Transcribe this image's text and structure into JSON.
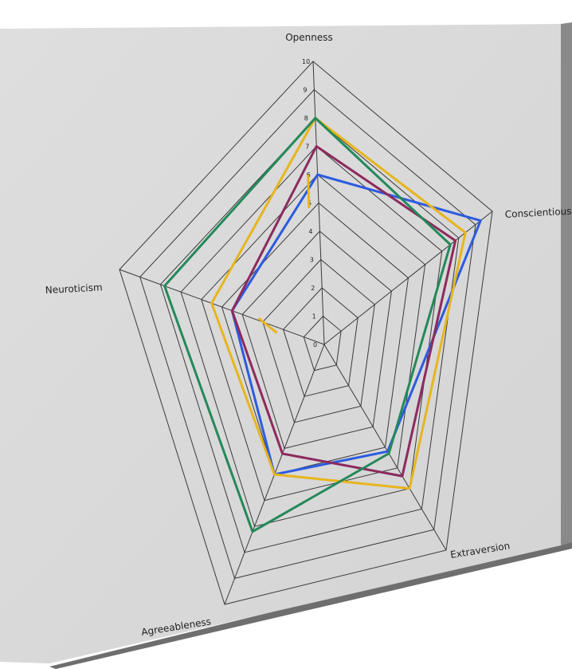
{
  "chart_data": {
    "type": "radar",
    "axes": [
      "Openness",
      "Conscientiousness",
      "Extraversion",
      "Agreeableness",
      "Neuroticism"
    ],
    "axis_label_display": [
      "Openness",
      "Conscientiousnes",
      "Extraversion",
      "Agreeableness",
      "Neuroticism"
    ],
    "rlim": [
      0,
      10
    ],
    "ticks": [
      "0",
      "1",
      "2",
      "3",
      "4",
      "5",
      "6",
      "7",
      "8",
      "9",
      "10"
    ],
    "grid": true,
    "legend": "none",
    "series": [
      {
        "color": "#2c5be0",
        "values": [
          6,
          9.3,
          5.2,
          5,
          4.5
        ]
      },
      {
        "color": "#8c2a5e",
        "values": [
          7,
          7.8,
          6.4,
          4.2,
          4.5
        ]
      },
      {
        "color": "#e7b51d",
        "values": [
          8,
          8.4,
          7,
          5,
          5.5
        ]
      },
      {
        "color": "#23895a",
        "values": [
          8,
          7.5,
          5.3,
          7.2,
          7.8
        ]
      }
    ],
    "partial_series": {
      "color": "#e7b51d",
      "values": [
        6,
        null,
        null,
        null,
        3.5
      ]
    }
  }
}
